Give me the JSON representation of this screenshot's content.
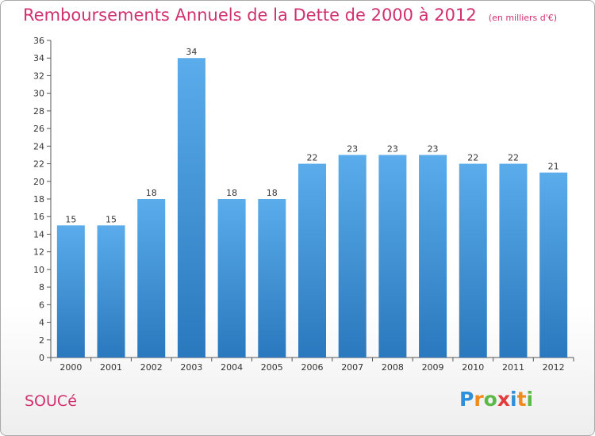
{
  "chart_title": "Remboursements Annuels de la Dette de 2000 à 2012",
  "unit_note": "(en milliers d'€)",
  "commune_name": "SOUCé",
  "logo": {
    "text": "Proxiti",
    "letters": [
      "P",
      "r",
      "o",
      "x",
      "i",
      "t",
      "i"
    ],
    "letter_colors": [
      "#2f8fd8",
      "#f08a1c",
      "#5cb848",
      "#e23b3b",
      "#2f8fd8",
      "#f08a1c",
      "#5cb848"
    ]
  },
  "colors": {
    "title": "#d1306e",
    "bar_top": "#5aaceb",
    "bar_bottom": "#2a78bd",
    "axis": "#555555",
    "grid_tick": "#555555"
  },
  "chart_data": {
    "type": "bar",
    "title": "Remboursements Annuels de la Dette de 2000 à 2012",
    "xlabel": "",
    "ylabel": "",
    "categories": [
      "2000",
      "2001",
      "2002",
      "2003",
      "2004",
      "2005",
      "2006",
      "2007",
      "2008",
      "2009",
      "2010",
      "2011",
      "2012"
    ],
    "values": [
      15,
      15,
      18,
      34,
      18,
      18,
      22,
      23,
      23,
      23,
      22,
      22,
      21
    ],
    "data_labels": [
      "15",
      "15",
      "18",
      "34",
      "18",
      "18",
      "22",
      "23",
      "23",
      "23",
      "22",
      "22",
      "21"
    ],
    "ylim": [
      0,
      36
    ],
    "y_ticks": [
      0,
      2,
      4,
      6,
      8,
      10,
      12,
      14,
      16,
      18,
      20,
      22,
      24,
      26,
      28,
      30,
      32,
      34,
      36
    ],
    "grid": false,
    "legend": "none"
  }
}
